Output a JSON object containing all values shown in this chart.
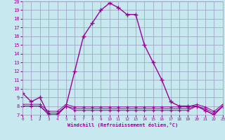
{
  "xlabel": "Windchill (Refroidissement éolien,°C)",
  "hours": [
    0,
    1,
    2,
    3,
    4,
    5,
    6,
    7,
    8,
    9,
    10,
    11,
    12,
    13,
    14,
    15,
    16,
    17,
    18,
    19,
    20,
    21,
    22,
    23
  ],
  "main_line": [
    9.5,
    8.5,
    9.0,
    7.0,
    7.0,
    8.0,
    12.0,
    16.0,
    17.5,
    19.0,
    19.8,
    19.3,
    18.5,
    18.5,
    15.0,
    13.0,
    11.0,
    8.5,
    8.0,
    8.0,
    8.0,
    7.5,
    7.0,
    8.0
  ],
  "windchill_line1": [
    8.0,
    8.0,
    8.0,
    7.0,
    7.0,
    8.0,
    7.5,
    7.5,
    7.5,
    7.5,
    7.5,
    7.5,
    7.5,
    7.5,
    7.5,
    7.5,
    7.5,
    7.5,
    7.5,
    7.5,
    8.0,
    7.5,
    7.0,
    8.0
  ],
  "windchill_line2": [
    8.0,
    8.0,
    8.0,
    7.2,
    7.2,
    8.0,
    7.7,
    7.7,
    7.7,
    7.7,
    7.7,
    7.7,
    7.7,
    7.7,
    7.7,
    7.7,
    7.7,
    7.7,
    7.7,
    7.7,
    8.0,
    7.7,
    7.2,
    8.0
  ],
  "windchill_line3": [
    8.2,
    8.2,
    8.2,
    7.4,
    7.4,
    8.2,
    7.9,
    7.9,
    7.9,
    7.9,
    7.9,
    7.9,
    7.9,
    7.9,
    7.9,
    7.9,
    7.9,
    7.9,
    7.9,
    7.9,
    8.2,
    7.9,
    7.4,
    8.2
  ],
  "line_color": "#990099",
  "bg_color": "#c8e8f0",
  "grid_color": "#9999bb",
  "ylim": [
    7,
    20
  ],
  "xlim": [
    0,
    23
  ],
  "yticks": [
    7,
    8,
    9,
    10,
    11,
    12,
    13,
    14,
    15,
    16,
    17,
    18,
    19,
    20
  ],
  "xticks": [
    0,
    1,
    2,
    3,
    4,
    5,
    6,
    7,
    8,
    9,
    10,
    11,
    12,
    13,
    14,
    15,
    16,
    17,
    18,
    19,
    20,
    21,
    22,
    23
  ]
}
